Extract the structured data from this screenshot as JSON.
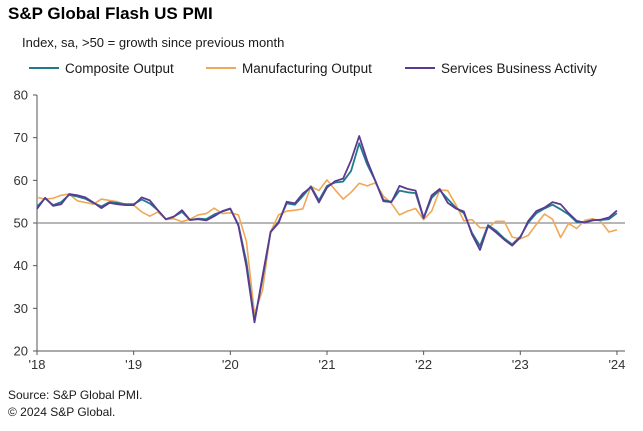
{
  "header": {
    "title": "S&P Global Flash US PMI",
    "subtitle": "Index, sa, >50 = growth since previous month"
  },
  "legend": [
    {
      "label": "Composite Output",
      "color": "#1f7a8c"
    },
    {
      "label": "Manufacturing Output",
      "color": "#f0a858"
    },
    {
      "label": "Services Business Activity",
      "color": "#5c3a92"
    }
  ],
  "footer": {
    "source": "Source: S&P Global PMI.",
    "copyright": "© 2024 S&P Global."
  },
  "chart_data": {
    "type": "line",
    "title": "S&P Global Flash US PMI",
    "subtitle": "Index, sa, >50 = growth since previous month",
    "x_start": "2018-01",
    "frequency": "monthly",
    "x_tick_labels": [
      "'18",
      "'19",
      "'20",
      "'21",
      "'22",
      "'23",
      "'24"
    ],
    "y_ticks": [
      20,
      30,
      40,
      50,
      60,
      70,
      80
    ],
    "ylim": [
      20,
      80
    ],
    "reference_line": 50,
    "grid": false,
    "legend_position": "top",
    "series": [
      {
        "name": "Composite Output",
        "color": "#1f7a8c",
        "values": [
          53.8,
          55.8,
          54.2,
          54.9,
          56.6,
          56.2,
          55.7,
          54.7,
          53.9,
          54.9,
          54.7,
          54.4,
          54.4,
          55.5,
          54.6,
          53.0,
          50.9,
          51.5,
          52.6,
          50.7,
          51.0,
          50.9,
          52.0,
          52.7,
          53.3,
          49.6,
          40.9,
          27.0,
          37.0,
          47.9,
          50.3,
          54.6,
          54.3,
          56.3,
          58.6,
          55.3,
          58.7,
          59.5,
          59.7,
          62.2,
          68.7,
          63.7,
          59.9,
          55.4,
          55.0,
          57.6,
          57.2,
          57.0,
          51.1,
          55.9,
          57.7,
          55.6,
          53.6,
          52.3,
          47.7,
          44.6,
          49.5,
          48.2,
          46.4,
          45.0,
          46.8,
          50.1,
          52.3,
          53.4,
          54.3,
          53.2,
          52.0,
          50.2,
          50.2,
          50.7,
          50.7,
          50.9,
          52.3
        ]
      },
      {
        "name": "Manufacturing Output",
        "color": "#f0a858",
        "values": [
          56.0,
          55.6,
          55.8,
          56.5,
          56.8,
          55.2,
          54.8,
          54.4,
          55.6,
          55.3,
          55.0,
          54.2,
          54.2,
          52.6,
          51.6,
          52.6,
          50.8,
          51.0,
          50.3,
          50.9,
          51.9,
          52.2,
          53.5,
          52.2,
          52.4,
          51.9,
          45.7,
          28.7,
          34.2,
          48.0,
          51.9,
          52.8,
          53.0,
          53.3,
          58.6,
          57.6,
          60.1,
          57.8,
          55.6,
          57.2,
          59.3,
          58.7,
          59.4,
          56.3,
          54.6,
          51.9,
          52.8,
          53.4,
          50.8,
          52.8,
          57.7,
          57.6,
          54.3,
          50.5,
          50.8,
          48.9,
          48.9,
          50.4,
          50.4,
          46.7,
          46.3,
          47.1,
          49.7,
          52.1,
          50.9,
          46.6,
          49.9,
          48.7,
          50.6,
          51.0,
          50.4,
          47.9,
          48.4
        ]
      },
      {
        "name": "Services Business Activity",
        "color": "#5c3a92",
        "values": [
          53.3,
          55.9,
          54.0,
          54.4,
          56.8,
          56.5,
          56.0,
          54.8,
          53.5,
          54.7,
          54.4,
          54.2,
          54.2,
          56.0,
          55.3,
          53.0,
          50.9,
          51.5,
          53.0,
          50.7,
          50.9,
          50.6,
          51.6,
          52.8,
          53.4,
          49.4,
          39.8,
          26.7,
          37.5,
          47.9,
          50.0,
          55.0,
          54.6,
          56.9,
          58.4,
          54.8,
          58.3,
          59.8,
          60.4,
          64.7,
          70.4,
          64.6,
          59.9,
          55.1,
          54.9,
          58.7,
          58.0,
          57.6,
          51.2,
          56.5,
          58.0,
          54.7,
          53.4,
          52.7,
          47.3,
          43.7,
          49.3,
          47.8,
          46.1,
          44.7,
          46.6,
          50.5,
          52.8,
          53.6,
          54.9,
          54.4,
          52.3,
          50.5,
          50.1,
          50.6,
          50.8,
          51.3,
          52.9
        ]
      }
    ]
  }
}
